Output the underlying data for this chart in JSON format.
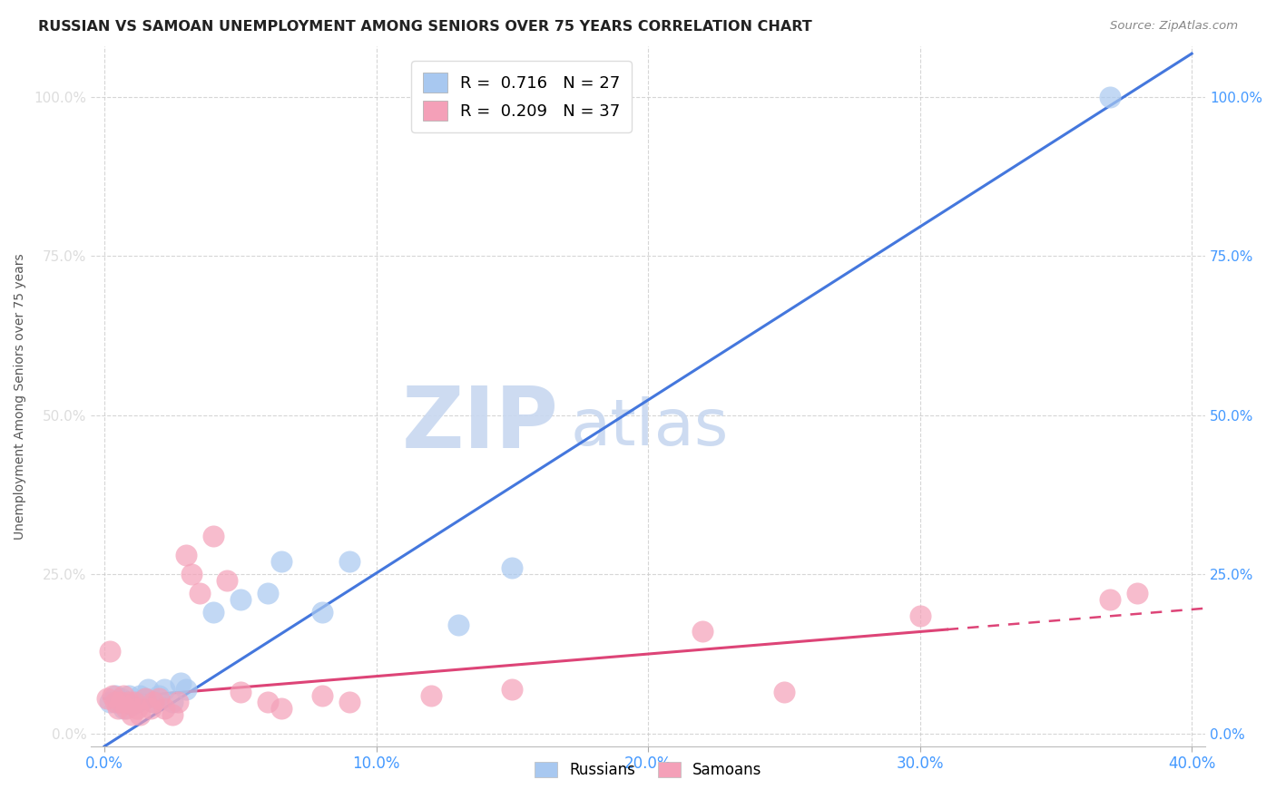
{
  "title": "RUSSIAN VS SAMOAN UNEMPLOYMENT AMONG SENIORS OVER 75 YEARS CORRELATION CHART",
  "source": "Source: ZipAtlas.com",
  "xlabel_ticks": [
    "0.0%",
    "10.0%",
    "20.0%",
    "30.0%",
    "40.0%"
  ],
  "xlabel_tick_vals": [
    0.0,
    0.1,
    0.2,
    0.3,
    0.4
  ],
  "ylabel": "Unemployment Among Seniors over 75 years",
  "ylabel_ticks": [
    "0.0%",
    "25.0%",
    "50.0%",
    "75.0%",
    "100.0%"
  ],
  "ylabel_tick_vals": [
    0.0,
    0.25,
    0.5,
    0.75,
    1.0
  ],
  "xlim": [
    -0.005,
    0.405
  ],
  "ylim": [
    -0.02,
    1.08
  ],
  "russian_R": 0.716,
  "russian_N": 27,
  "samoan_R": 0.209,
  "samoan_N": 37,
  "russian_color": "#a8c8f0",
  "samoan_color": "#f4a0b8",
  "russian_line_color": "#4477dd",
  "samoan_line_color": "#dd4477",
  "watermark_zip": "ZIP",
  "watermark_atlas": "atlas",
  "watermark_color_zip": "#c8d8f0",
  "watermark_color_atlas": "#c8d8f0",
  "russian_line_slope": 2.72,
  "russian_line_intercept": -0.02,
  "samoan_line_slope": 0.35,
  "samoan_line_intercept": 0.055,
  "russian_x": [
    0.002,
    0.004,
    0.005,
    0.006,
    0.007,
    0.008,
    0.009,
    0.01,
    0.012,
    0.013,
    0.015,
    0.016,
    0.018,
    0.02,
    0.022,
    0.025,
    0.028,
    0.03,
    0.04,
    0.05,
    0.06,
    0.065,
    0.08,
    0.09,
    0.13,
    0.15,
    0.37
  ],
  "russian_y": [
    0.05,
    0.06,
    0.05,
    0.055,
    0.04,
    0.05,
    0.06,
    0.045,
    0.05,
    0.06,
    0.055,
    0.07,
    0.05,
    0.06,
    0.07,
    0.05,
    0.08,
    0.07,
    0.19,
    0.21,
    0.22,
    0.27,
    0.19,
    0.27,
    0.17,
    0.26,
    1.0
  ],
  "samoan_x": [
    0.001,
    0.002,
    0.003,
    0.004,
    0.005,
    0.006,
    0.007,
    0.008,
    0.009,
    0.01,
    0.011,
    0.012,
    0.013,
    0.015,
    0.017,
    0.018,
    0.02,
    0.022,
    0.025,
    0.027,
    0.03,
    0.032,
    0.035,
    0.04,
    0.045,
    0.05,
    0.06,
    0.065,
    0.08,
    0.09,
    0.12,
    0.15,
    0.22,
    0.25,
    0.3,
    0.37,
    0.38
  ],
  "samoan_y": [
    0.055,
    0.13,
    0.06,
    0.05,
    0.04,
    0.05,
    0.06,
    0.04,
    0.05,
    0.03,
    0.05,
    0.04,
    0.03,
    0.055,
    0.04,
    0.05,
    0.055,
    0.04,
    0.03,
    0.05,
    0.28,
    0.25,
    0.22,
    0.31,
    0.24,
    0.065,
    0.05,
    0.04,
    0.06,
    0.05,
    0.06,
    0.07,
    0.16,
    0.065,
    0.185,
    0.21,
    0.22
  ]
}
